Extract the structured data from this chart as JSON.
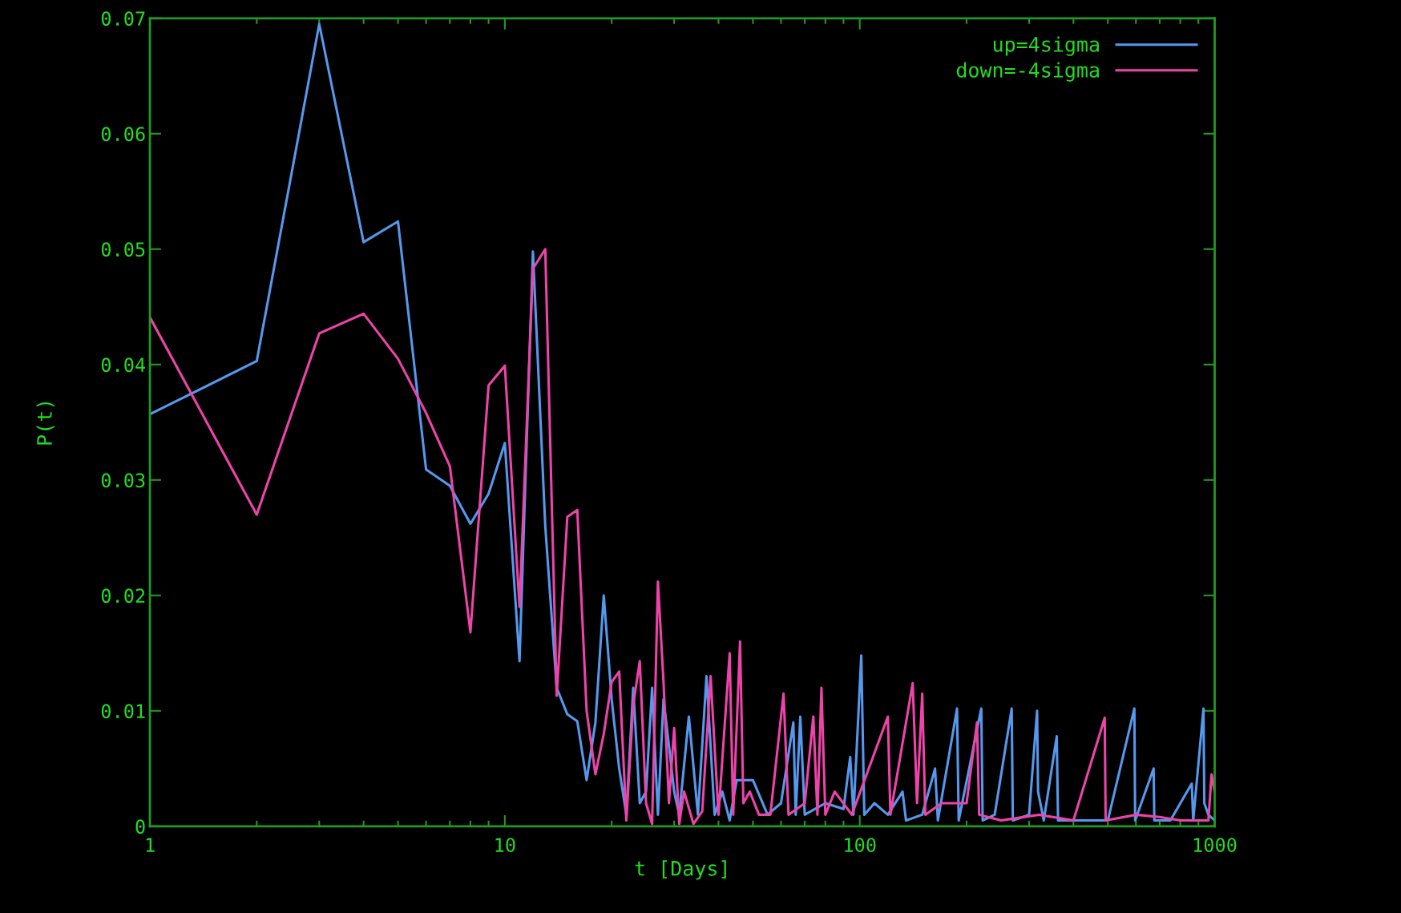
{
  "chart_data": {
    "type": "line",
    "xlabel": "t [Days]",
    "ylabel": "P(t)",
    "log": "x",
    "xlim": [
      1,
      1000
    ],
    "xticks": [
      1,
      10,
      100,
      1000
    ],
    "ylim": [
      0,
      0.07
    ],
    "yticks": [
      0,
      0.01,
      0.02,
      0.03,
      0.04,
      0.05,
      0.06,
      0.07
    ],
    "grid": false,
    "legend": "top right",
    "series": [
      {
        "name": "up=4sigma",
        "color": "#5599ee",
        "x": [
          1,
          2,
          3,
          4,
          5,
          6,
          7,
          8,
          9,
          10,
          11,
          12,
          13,
          14,
          15,
          16,
          17,
          18,
          19,
          20,
          21,
          22,
          23,
          24,
          25,
          26,
          27,
          28,
          29,
          30,
          31,
          33,
          35,
          37,
          39,
          41,
          43,
          45,
          50,
          55,
          60,
          65,
          66,
          68,
          70,
          80,
          90,
          94,
          96,
          101,
          103,
          110,
          120,
          132,
          135,
          150,
          163,
          166,
          188,
          190,
          220,
          222,
          240,
          268,
          270,
          300,
          316,
          318,
          330,
          359,
          362,
          420,
          500,
          594,
          597,
          673,
          676,
          750,
          862,
          870,
          930,
          935,
          960,
          1000
        ],
        "values": [
          0.0357,
          0.0403,
          0.0695,
          0.0506,
          0.0524,
          0.0309,
          0.0295,
          0.0262,
          0.0288,
          0.0332,
          0.0143,
          0.0498,
          0.026,
          0.012,
          0.0097,
          0.0091,
          0.004,
          0.009,
          0.02,
          0.011,
          0.005,
          0.001,
          0.012,
          0.002,
          0.003,
          0.012,
          0.001,
          0.011,
          0.007,
          0.003,
          0.001,
          0.0095,
          0.001,
          0.013,
          0.001,
          0.003,
          0.0005,
          0.004,
          0.004,
          0.001,
          0.002,
          0.009,
          0.001,
          0.0095,
          0.001,
          0.002,
          0.0015,
          0.006,
          0.001,
          0.0148,
          0.001,
          0.002,
          0.001,
          0.003,
          0.0005,
          0.001,
          0.005,
          0.0005,
          0.0102,
          0.0005,
          0.0102,
          0.0005,
          0.001,
          0.0102,
          0.0005,
          0.001,
          0.01,
          0.003,
          0.0005,
          0.0078,
          0.0005,
          0.0005,
          0.0005,
          0.0102,
          0.0005,
          0.005,
          0.0005,
          0.0005,
          0.0037,
          0.0005,
          0.0102,
          0.002,
          0.001,
          0.0005
        ]
      },
      {
        "name": "down=-4sigma",
        "color": "#ee44aa",
        "x": [
          1,
          2,
          3,
          4,
          5,
          6,
          7,
          8,
          9,
          10,
          11,
          12,
          13,
          14,
          15,
          16,
          17,
          18,
          19,
          20,
          21,
          22,
          23,
          24,
          25,
          26,
          27,
          28,
          29,
          30,
          31,
          32,
          34,
          36,
          38,
          40,
          43,
          44,
          46,
          47,
          49,
          52,
          56,
          61,
          63,
          70,
          74,
          76,
          78,
          80,
          85,
          95,
          120,
          122,
          141,
          145,
          150,
          153,
          170,
          200,
          214,
          217,
          250,
          320,
          400,
          490,
          493,
          600,
          700,
          800,
          960,
          980,
          1000
        ],
        "values": [
          0.0441,
          0.027,
          0.0427,
          0.0444,
          0.0405,
          0.0358,
          0.0312,
          0.0168,
          0.0382,
          0.0399,
          0.019,
          0.0483,
          0.05,
          0.0113,
          0.0268,
          0.0274,
          0.01,
          0.0045,
          0.008,
          0.0125,
          0.0134,
          0.0005,
          0.0105,
          0.0143,
          0.002,
          0.0002,
          0.0212,
          0.0125,
          0.002,
          0.0085,
          0.0002,
          0.003,
          0.0002,
          0.0013,
          0.013,
          0.001,
          0.015,
          0.001,
          0.016,
          0.002,
          0.003,
          0.001,
          0.001,
          0.0115,
          0.001,
          0.002,
          0.0095,
          0.001,
          0.012,
          0.001,
          0.003,
          0.001,
          0.0095,
          0.001,
          0.0124,
          0.002,
          0.0115,
          0.001,
          0.002,
          0.002,
          0.009,
          0.001,
          0.0005,
          0.001,
          0.0005,
          0.0094,
          0.0005,
          0.001,
          0.0008,
          0.0005,
          0.0005,
          0.0045,
          0.003
        ]
      }
    ]
  }
}
